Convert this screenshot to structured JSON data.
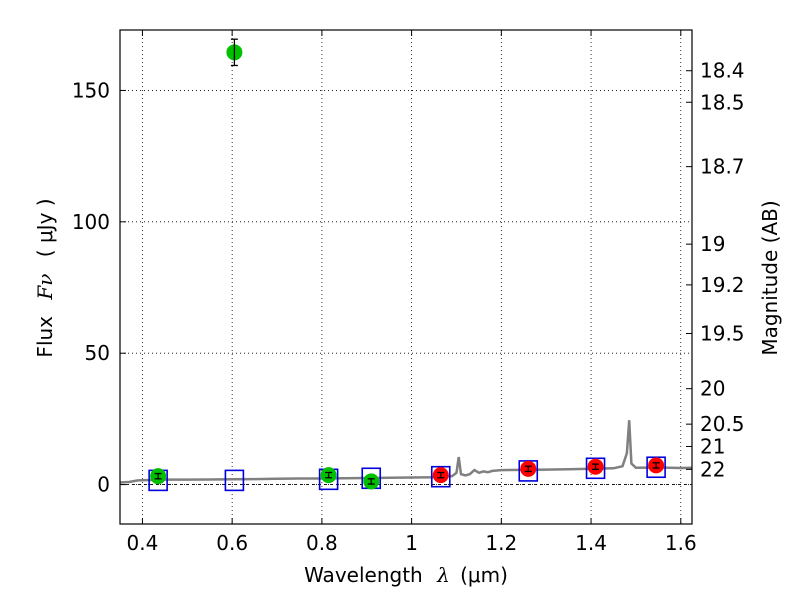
{
  "chart_data": {
    "type": "scatter",
    "xlabel_text": "Wavelength",
    "xlabel_symbol": "λ",
    "xlabel_unit": "(μm)",
    "ylabel_text": "Flux",
    "ylabel_symbol": "Fν",
    "ylabel_unit": "( μJy )",
    "y2label": "Magnitude (AB)",
    "xlim": [
      0.35,
      1.625
    ],
    "ylim": [
      -15,
      173
    ],
    "grid": true,
    "x_ticks": [
      0.4,
      0.6,
      0.8,
      1.0,
      1.2,
      1.4,
      1.6
    ],
    "x_tick_labels": [
      "0.4",
      "0.6",
      "0.8",
      "1",
      "1.2",
      "1.4",
      "1.6"
    ],
    "y_ticks": [
      0,
      50,
      100,
      150
    ],
    "y_tick_labels": [
      "0",
      "50",
      "100",
      "150"
    ],
    "magnitude_ticks": [
      {
        "label": "18.4",
        "flux": 157.5
      },
      {
        "label": "18.5",
        "flux": 145.5
      },
      {
        "label": "18.7",
        "flux": 121.0
      },
      {
        "label": "19",
        "flux": 91.5
      },
      {
        "label": "19.2",
        "flux": 76.0
      },
      {
        "label": "19.5",
        "flux": 57.5
      },
      {
        "label": "20",
        "flux": 36.5
      },
      {
        "label": "20.5",
        "flux": 23.0
      },
      {
        "label": "21",
        "flux": 14.5
      },
      {
        "label": "22",
        "flux": 5.8
      }
    ],
    "dashed_zero_line": 0,
    "series": [
      {
        "name": "Observed (green)",
        "color": "#00c000",
        "points": [
          {
            "x": 0.435,
            "y": 3.2,
            "err": 1.0
          },
          {
            "x": 0.605,
            "y": 164.5,
            "err": 5.0
          },
          {
            "x": 0.815,
            "y": 3.6,
            "err": 1.0
          },
          {
            "x": 0.91,
            "y": 1.2,
            "err": 1.0
          }
        ]
      },
      {
        "name": "Observed (red)",
        "color": "#ff0000",
        "points": [
          {
            "x": 1.065,
            "y": 3.6,
            "err": 1.0
          },
          {
            "x": 1.26,
            "y": 6.0,
            "err": 1.0
          },
          {
            "x": 1.41,
            "y": 6.8,
            "err": 1.0
          },
          {
            "x": 1.545,
            "y": 7.3,
            "err": 1.0
          }
        ]
      },
      {
        "name": "Model (blue squares)",
        "color": "#0000dd",
        "points": [
          {
            "x": 0.435,
            "y": 1.6
          },
          {
            "x": 0.605,
            "y": 1.6
          },
          {
            "x": 0.815,
            "y": 2.0
          },
          {
            "x": 0.91,
            "y": 2.4
          },
          {
            "x": 1.065,
            "y": 3.0
          },
          {
            "x": 1.26,
            "y": 5.2
          },
          {
            "x": 1.41,
            "y": 6.2
          },
          {
            "x": 1.545,
            "y": 6.6
          }
        ]
      },
      {
        "name": "Model SED",
        "color": "#808080",
        "x": [
          0.35,
          0.37,
          0.39,
          0.41,
          0.45,
          0.5,
          0.55,
          0.6,
          0.65,
          0.7,
          0.75,
          0.8,
          0.85,
          0.9,
          0.95,
          1.0,
          1.05,
          1.09,
          1.1,
          1.105,
          1.11,
          1.12,
          1.13,
          1.14,
          1.15,
          1.16,
          1.17,
          1.18,
          1.2,
          1.25,
          1.3,
          1.35,
          1.4,
          1.45,
          1.47,
          1.48,
          1.485,
          1.49,
          1.5,
          1.55,
          1.6,
          1.625
        ],
        "y": [
          0.8,
          1.0,
          1.6,
          1.7,
          1.9,
          1.9,
          1.95,
          2.0,
          2.1,
          2.2,
          2.3,
          2.3,
          2.4,
          2.5,
          2.6,
          2.7,
          2.8,
          3.2,
          4.5,
          10.5,
          4.0,
          3.5,
          4.0,
          5.5,
          4.5,
          5.0,
          4.7,
          5.2,
          5.5,
          5.6,
          5.7,
          5.8,
          6.0,
          6.2,
          7.0,
          12.0,
          24.5,
          8.0,
          6.4,
          6.5,
          6.3,
          6.4
        ]
      }
    ]
  }
}
